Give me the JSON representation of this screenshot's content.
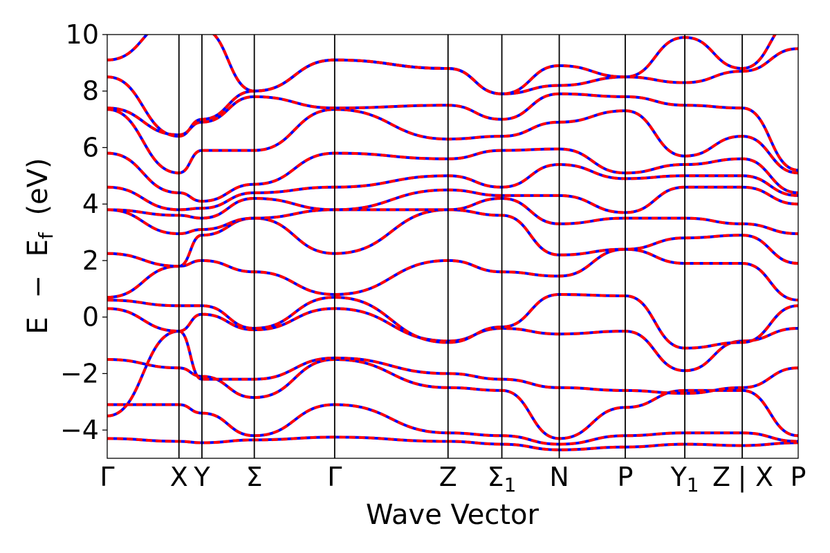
{
  "chart_data": {
    "type": "line",
    "title": "",
    "xlabel": "Wave Vector",
    "ylabel": {
      "e": "E",
      "minus": "−",
      "ef_base": "E",
      "ef_sub": "f",
      "unit": "(eV)"
    },
    "ylim": [
      -5,
      10
    ],
    "yticks": [
      -4,
      -2,
      0,
      2,
      4,
      6,
      8,
      10
    ],
    "ytick_labels": [
      "−4",
      "−2",
      "0",
      "2",
      "4",
      "6",
      "8",
      "10"
    ],
    "kpoint_positions": [
      0,
      1.0,
      1.32,
      2.05,
      3.17,
      4.75,
      5.5,
      6.3,
      7.22,
      8.05,
      8.85,
      9.63
    ],
    "xlim": [
      0,
      9.63
    ],
    "kpoint_labels": [
      {
        "base": "Γ",
        "sub": ""
      },
      {
        "base": "X",
        "sub": ""
      },
      {
        "base": "Y",
        "sub": ""
      },
      {
        "base": "Σ",
        "sub": ""
      },
      {
        "base": "Γ",
        "sub": ""
      },
      {
        "base": "Z",
        "sub": ""
      },
      {
        "base": "Σ",
        "sub": "1"
      },
      {
        "base": "N",
        "sub": ""
      },
      {
        "base": "P",
        "sub": ""
      },
      {
        "base": "Y",
        "sub": "1"
      },
      {
        "base": "Z",
        "sub": ""
      },
      {
        "base": "|",
        "sub": ""
      },
      {
        "base": "X",
        "sub": ""
      },
      {
        "base": "P",
        "sub": ""
      }
    ],
    "series_colors": {
      "primary": "#ff0000",
      "overlay": "#0000ff"
    },
    "grid": false,
    "legend": "none",
    "bands": [
      [
        -4.3,
        -4.4,
        -4.45,
        -4.35,
        -4.25,
        -4.4,
        -4.5,
        -4.7,
        -4.6,
        -4.5,
        -4.55,
        -4.45,
        -4.5
      ],
      [
        -3.1,
        -3.1,
        -3.4,
        -4.2,
        -3.1,
        -4.1,
        -4.2,
        -4.5,
        -4.2,
        -4.1,
        -4.1,
        -4.4,
        -4.3
      ],
      [
        -1.5,
        -1.8,
        -2.1,
        -2.85,
        -1.5,
        -2.5,
        -2.6,
        -4.3,
        -3.2,
        -2.6,
        -2.6,
        -4.2,
        -4.1
      ],
      [
        -3.5,
        -0.5,
        -2.2,
        -2.2,
        -1.45,
        -2.0,
        -2.2,
        -2.5,
        -2.6,
        -2.7,
        -2.5,
        -1.8,
        -2.5
      ],
      [
        0.3,
        -0.5,
        0.1,
        -0.45,
        0.3,
        -0.85,
        -0.4,
        -0.6,
        -0.5,
        -1.9,
        -0.85,
        -0.4,
        -3.2
      ],
      [
        0.6,
        0.4,
        0.4,
        -0.4,
        0.7,
        -0.9,
        -0.35,
        0.8,
        0.75,
        -1.1,
        -0.9,
        0.4,
        -0.95
      ],
      [
        0.7,
        1.8,
        2.0,
        1.6,
        0.8,
        2.0,
        1.6,
        1.45,
        2.4,
        1.9,
        1.9,
        0.6,
        0.7
      ],
      [
        2.25,
        1.8,
        2.9,
        3.5,
        2.25,
        3.8,
        3.6,
        2.2,
        2.4,
        2.8,
        2.9,
        1.9,
        2.5
      ],
      [
        3.8,
        2.95,
        3.1,
        3.5,
        3.8,
        3.8,
        4.2,
        3.3,
        3.5,
        3.5,
        3.3,
        2.95,
        3.1
      ],
      [
        3.8,
        3.6,
        3.5,
        4.2,
        3.8,
        4.5,
        4.3,
        4.3,
        3.7,
        4.6,
        4.6,
        4.0,
        3.7
      ],
      [
        4.6,
        3.8,
        3.85,
        4.4,
        4.6,
        5.0,
        4.6,
        5.4,
        4.9,
        5.0,
        5.0,
        4.3,
        4.8
      ],
      [
        5.8,
        4.4,
        4.1,
        4.7,
        5.8,
        5.6,
        5.9,
        5.95,
        5.1,
        5.4,
        5.6,
        4.4,
        5.0
      ],
      [
        7.35,
        5.1,
        5.9,
        5.9,
        7.35,
        6.3,
        6.4,
        6.9,
        7.3,
        5.7,
        6.4,
        5.1,
        7.3
      ],
      [
        7.4,
        6.45,
        6.9,
        7.8,
        7.4,
        7.5,
        7.0,
        7.9,
        7.8,
        7.5,
        7.4,
        5.2,
        7.35
      ],
      [
        8.5,
        6.4,
        7.0,
        8.0,
        9.1,
        8.8,
        7.9,
        8.2,
        8.5,
        8.3,
        8.7,
        9.5,
        8.5
      ],
      [
        9.1,
        10.6,
        10.2,
        8.0,
        9.1,
        8.8,
        7.9,
        8.9,
        8.5,
        9.9,
        8.8,
        10.6,
        9.0
      ]
    ]
  }
}
